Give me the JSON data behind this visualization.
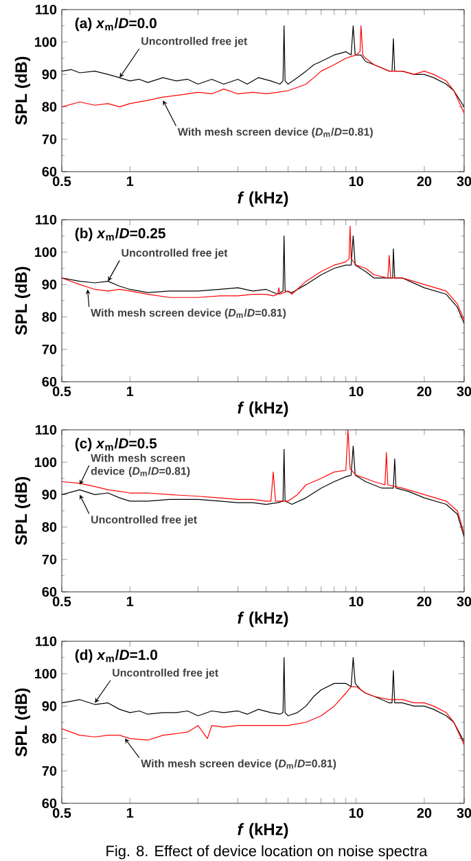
{
  "chart_data": [
    {
      "type": "line",
      "title": "(a) *x*$_{m}$/*D*=0.0",
      "xlabel": "*f* (kHz)",
      "ylabel": "SPL (dB)",
      "log": "x",
      "marker": "none",
      "xlim": [
        0.5,
        30
      ],
      "ylim": [
        60,
        110
      ],
      "xticks": [
        0.5,
        1,
        {
          "value": 2,
          "label": null
        },
        {
          "value": 3,
          "label": null
        },
        {
          "value": 4,
          "label": null
        },
        {
          "value": 5,
          "label": null
        },
        {
          "value": 6,
          "label": null
        },
        {
          "value": 7,
          "label": null
        },
        {
          "value": 8,
          "label": null
        },
        {
          "value": 9,
          "label": null
        },
        10,
        20,
        30
      ],
      "yticks": [
        60,
        70,
        80,
        90,
        100,
        110
      ],
      "series": [
        {
          "color": "#000000",
          "x": [
            0.5,
            0.55,
            0.6,
            0.7,
            0.8,
            0.9,
            1.0,
            1.1,
            1.2,
            1.4,
            1.6,
            1.8,
            2.0,
            2.3,
            2.6,
            3.0,
            3.3,
            3.7,
            4.2,
            4.6,
            4.75,
            4.8,
            4.85,
            5.0,
            5.5,
            6.0,
            6.5,
            7,
            8,
            9,
            9.5,
            9.7,
            9.9,
            10.5,
            11,
            12,
            13,
            14,
            14.4,
            14.6,
            14.8,
            16,
            18,
            20,
            22,
            25,
            27,
            30
          ],
          "values": [
            91,
            91.5,
            90.5,
            91,
            90,
            89,
            88,
            88.5,
            87.5,
            89,
            88,
            88.5,
            87,
            88.5,
            87,
            88.5,
            87,
            89,
            88,
            87,
            88,
            105,
            88,
            87,
            89,
            91,
            93,
            94,
            96,
            97,
            96,
            105,
            96,
            96,
            94,
            93,
            92,
            91,
            91,
            101,
            91,
            91,
            90,
            90,
            89,
            87,
            85,
            80
          ]
        },
        {
          "color": "#ff0000",
          "x": [
            0.5,
            0.6,
            0.7,
            0.8,
            0.9,
            1,
            1.2,
            1.4,
            1.6,
            1.8,
            2,
            2.3,
            2.6,
            3,
            3.5,
            4,
            4.5,
            5,
            5.5,
            6,
            6.5,
            7,
            8,
            9,
            10,
            10.4,
            10.5,
            10.7,
            11,
            12,
            14,
            16,
            18,
            20,
            22,
            25,
            27,
            30
          ],
          "values": [
            80,
            81.5,
            80.5,
            81,
            80,
            81,
            82,
            83,
            83.5,
            84,
            84.5,
            84,
            85.5,
            84,
            84.5,
            84,
            84.5,
            85,
            86,
            87,
            89,
            91,
            93,
            95,
            96,
            97,
            105,
            96,
            95,
            93,
            91,
            91,
            90,
            91,
            90,
            88,
            85,
            78
          ]
        }
      ],
      "annotations": [
        {
          "text": "Uncontrolled free jet",
          "x": 0.9,
          "y": 89
        },
        {
          "text": "With mesh screen device (*D*$_{m}$/*D*=0.81)",
          "x": 1.4,
          "y": 82
        }
      ]
    },
    {
      "type": "line",
      "title": "(b) *x*$_{m}$/*D*=0.25",
      "xlabel": "*f* (kHz)",
      "ylabel": "SPL (dB)",
      "log": "x",
      "marker": "none",
      "xlim": [
        0.5,
        30
      ],
      "ylim": [
        60,
        110
      ],
      "xticks": [
        0.5,
        1,
        {
          "value": 2,
          "label": null
        },
        {
          "value": 3,
          "label": null
        },
        {
          "value": 4,
          "label": null
        },
        {
          "value": 5,
          "label": null
        },
        {
          "value": 6,
          "label": null
        },
        {
          "value": 7,
          "label": null
        },
        {
          "value": 8,
          "label": null
        },
        {
          "value": 9,
          "label": null
        },
        10,
        20,
        30
      ],
      "yticks": [
        60,
        70,
        80,
        90,
        100,
        110
      ],
      "series": [
        {
          "color": "#000000",
          "x": [
            0.5,
            0.6,
            0.7,
            0.8,
            0.9,
            1,
            1.2,
            1.5,
            2,
            2.5,
            3,
            3.5,
            4,
            4.5,
            4.75,
            4.8,
            4.85,
            5.2,
            6,
            7,
            8,
            9,
            9.5,
            9.7,
            9.9,
            11,
            12,
            14,
            14.5,
            14.6,
            14.8,
            16,
            20,
            25,
            28,
            30
          ],
          "values": [
            92,
            91,
            90.5,
            91,
            89.5,
            88.5,
            87.5,
            88,
            88,
            88.5,
            89,
            88,
            88.5,
            87,
            88,
            105,
            88,
            87.5,
            90,
            93,
            95,
            96,
            96,
            105,
            96,
            94,
            92,
            92,
            92,
            101,
            92,
            92,
            89,
            87,
            83,
            78
          ]
        },
        {
          "color": "#ff0000",
          "x": [
            0.5,
            0.6,
            0.7,
            0.8,
            0.9,
            1,
            1.2,
            1.5,
            2,
            2.5,
            3,
            3.5,
            4,
            4.3,
            4.5,
            4.55,
            4.6,
            5,
            5.2,
            6,
            7,
            8,
            9,
            9.3,
            9.4,
            9.5,
            10,
            11,
            12,
            13.8,
            14,
            14.2,
            16,
            20,
            25,
            28,
            30
          ],
          "values": [
            92,
            90,
            88.5,
            88,
            88.5,
            88,
            87,
            86,
            86,
            86.5,
            86.5,
            87,
            87,
            86.5,
            87,
            89,
            87,
            88,
            87,
            91,
            94,
            96,
            97,
            98,
            108,
            98,
            96,
            95,
            93,
            92,
            99,
            92,
            92,
            90,
            88,
            84,
            79
          ]
        }
      ],
      "annotations": [
        {
          "text": "Uncontrolled free jet",
          "x": 0.8,
          "y": 91
        },
        {
          "text": "With mesh screen device (*D*$_{m}$/*D*=0.81)",
          "x": 0.65,
          "y": 88.5
        }
      ]
    },
    {
      "type": "line",
      "title": "(c) *x*$_{m}$/*D*=0.5",
      "xlabel": "*f* (kHz)",
      "ylabel": "SPL (dB)",
      "log": "x",
      "marker": "none",
      "xlim": [
        0.5,
        30
      ],
      "ylim": [
        60,
        110
      ],
      "xticks": [
        0.5,
        1,
        {
          "value": 2,
          "label": null
        },
        {
          "value": 3,
          "label": null
        },
        {
          "value": 4,
          "label": null
        },
        {
          "value": 5,
          "label": null
        },
        {
          "value": 6,
          "label": null
        },
        {
          "value": 7,
          "label": null
        },
        {
          "value": 8,
          "label": null
        },
        {
          "value": 9,
          "label": null
        },
        10,
        20,
        30
      ],
      "yticks": [
        60,
        70,
        80,
        90,
        100,
        110
      ],
      "series": [
        {
          "color": "#000000",
          "x": [
            0.5,
            0.6,
            0.7,
            0.8,
            0.9,
            1,
            1.2,
            1.5,
            2,
            2.5,
            3,
            3.5,
            4,
            4.5,
            4.75,
            4.8,
            4.85,
            5.2,
            6,
            7,
            8,
            9,
            9.5,
            9.7,
            9.9,
            11,
            13,
            14.6,
            14.8,
            15,
            17,
            20,
            25,
            28,
            30
          ],
          "values": [
            90,
            91.5,
            90,
            90.5,
            89,
            88,
            88,
            88.5,
            88.5,
            88,
            87.5,
            87.5,
            87,
            87.5,
            88,
            104,
            88,
            87,
            89,
            92,
            94,
            95.5,
            96,
            105,
            96,
            94,
            92,
            92,
            101,
            92,
            91,
            89,
            87,
            84,
            77
          ]
        },
        {
          "color": "#ff0000",
          "x": [
            0.5,
            0.6,
            0.7,
            0.8,
            0.9,
            1,
            1.2,
            1.5,
            2,
            2.5,
            3,
            3.5,
            4,
            4.2,
            4.3,
            4.4,
            5,
            5.5,
            6,
            7,
            8,
            9,
            9.2,
            9.4,
            10,
            11,
            12,
            13.4,
            13.6,
            13.8,
            16,
            20,
            25,
            28,
            30
          ],
          "values": [
            94,
            93.5,
            92.5,
            91.5,
            91,
            90.5,
            90.5,
            90,
            89.5,
            89,
            88.5,
            88.5,
            88,
            88,
            97,
            88,
            88,
            90,
            93,
            95,
            97,
            97.5,
            110,
            98,
            96,
            95,
            94,
            93,
            103,
            93,
            92,
            90,
            88,
            85,
            78
          ]
        }
      ],
      "annotations": [
        {
          "text": "With mesh screen device (*D*$_{m}$/*D*=0.81)",
          "x": 0.6,
          "y": 93
        },
        {
          "text": "Uncontrolled free jet",
          "x": 0.6,
          "y": 90
        }
      ]
    },
    {
      "type": "line",
      "title": "(d) *x*$_{m}$/*D*=1.0",
      "xlabel": "*f* (kHz)",
      "ylabel": "SPL (dB)",
      "log": "x",
      "marker": "none",
      "xlim": [
        0.5,
        30
      ],
      "ylim": [
        60,
        110
      ],
      "xticks": [
        0.5,
        1,
        {
          "value": 2,
          "label": null
        },
        {
          "value": 3,
          "label": null
        },
        {
          "value": 4,
          "label": null
        },
        {
          "value": 5,
          "label": null
        },
        {
          "value": 6,
          "label": null
        },
        {
          "value": 7,
          "label": null
        },
        {
          "value": 8,
          "label": null
        },
        {
          "value": 9,
          "label": null
        },
        10,
        20,
        30
      ],
      "yticks": [
        60,
        70,
        80,
        90,
        100,
        110
      ],
      "series": [
        {
          "color": "#000000",
          "x": [
            0.5,
            0.55,
            0.6,
            0.7,
            0.8,
            0.9,
            1.0,
            1.1,
            1.2,
            1.4,
            1.6,
            1.8,
            2.0,
            2.3,
            2.6,
            3.0,
            3.3,
            3.7,
            4.2,
            4.6,
            4.75,
            4.8,
            4.85,
            5.0,
            5.5,
            6.0,
            6.5,
            7,
            8,
            9,
            9.5,
            9.7,
            9.9,
            10.5,
            11,
            12,
            13,
            14,
            14.4,
            14.6,
            14.8,
            16,
            18,
            20,
            22,
            25,
            27,
            30
          ],
          "values": [
            91,
            91.5,
            92,
            90.5,
            91,
            89,
            88,
            88.5,
            87.5,
            88,
            88,
            88.5,
            87,
            88.5,
            88,
            88.5,
            87.5,
            89,
            88,
            87.5,
            88,
            105,
            88,
            87,
            88,
            90,
            93,
            95,
            97,
            97,
            96,
            105,
            97,
            95,
            94,
            93,
            92,
            91,
            91,
            101,
            91,
            91,
            90,
            90,
            89,
            87,
            85,
            79
          ]
        },
        {
          "color": "#ff0000",
          "x": [
            0.5,
            0.6,
            0.7,
            0.8,
            0.9,
            1,
            1.2,
            1.4,
            1.6,
            1.8,
            2,
            2.2,
            2.3,
            2.6,
            3,
            3.5,
            4,
            5,
            6,
            7,
            8,
            9,
            9.5,
            10,
            11,
            12,
            14,
            16,
            18,
            20,
            22,
            25,
            27,
            30
          ],
          "values": [
            83,
            81,
            80.5,
            81,
            81,
            80,
            79.5,
            81,
            81.5,
            82,
            84,
            80,
            84,
            83.5,
            84,
            84,
            84,
            84,
            85,
            87,
            90,
            94,
            96,
            96,
            94,
            93,
            92,
            92,
            91,
            91,
            90,
            88,
            85,
            78
          ]
        }
      ],
      "annotations": [
        {
          "text": "Uncontrolled free jet",
          "x": 0.7,
          "y": 91
        },
        {
          "text": "With mesh screen device (*D*$_{m}$/*D*=0.81)",
          "x": 0.95,
          "y": 80
        },
        "Fig. 8. Effect of device location on noise spectra"
      ]
    }
  ]
}
